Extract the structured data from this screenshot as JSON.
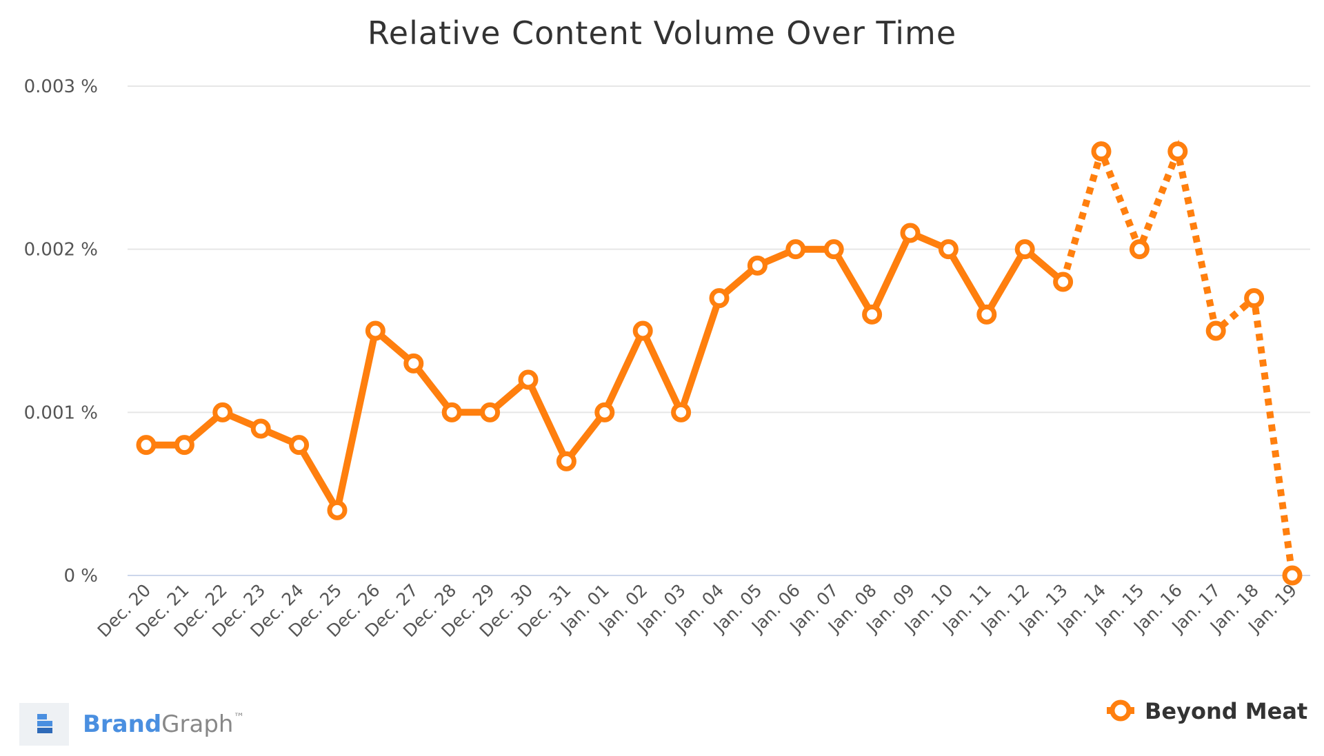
{
  "chart_data": {
    "type": "line",
    "title": "Relative Content Volume Over Time",
    "xlabel": "",
    "ylabel": "",
    "ylim": [
      0,
      0.003
    ],
    "y_ticks": [
      "0 %",
      "0.001 %",
      "0.002 %",
      "0.003 %"
    ],
    "y_tick_values": [
      0,
      0.001,
      0.002,
      0.003
    ],
    "grid": true,
    "legend_position": "bottom-right",
    "categories": [
      "Dec. 20",
      "Dec. 21",
      "Dec. 22",
      "Dec. 23",
      "Dec. 24",
      "Dec. 25",
      "Dec. 26",
      "Dec. 27",
      "Dec. 28",
      "Dec. 29",
      "Dec. 30",
      "Dec. 31",
      "Jan. 01",
      "Jan. 02",
      "Jan. 03",
      "Jan. 04",
      "Jan. 05",
      "Jan. 06",
      "Jan. 07",
      "Jan. 08",
      "Jan. 09",
      "Jan. 10",
      "Jan. 11",
      "Jan. 12",
      "Jan. 13",
      "Jan. 14",
      "Jan. 15",
      "Jan. 16",
      "Jan. 17",
      "Jan. 18",
      "Jan. 19"
    ],
    "series": [
      {
        "name": "Beyond Meat",
        "color": "#ff7f0e",
        "values": [
          0.0008,
          0.0008,
          0.001,
          0.0009,
          0.0008,
          0.0004,
          0.0015,
          0.0013,
          0.001,
          0.001,
          0.0012,
          0.0007,
          0.001,
          0.0015,
          0.001,
          0.0017,
          0.0019,
          0.002,
          0.002,
          0.0016,
          0.0021,
          0.002,
          0.0016,
          0.002,
          0.0018,
          0.0026,
          0.002,
          0.0026,
          0.0015,
          0.0017,
          0.0
        ],
        "dotted_from_category": "Jan. 13"
      }
    ]
  },
  "branding": {
    "brand_part1": "Brand",
    "brand_part2": "Graph",
    "trademark": "™",
    "brand_color_1": "#4a8fe0",
    "brand_color_2": "#888888"
  },
  "colors": {
    "grid": "#e6e6e6",
    "axis": "#ccd6eb"
  }
}
